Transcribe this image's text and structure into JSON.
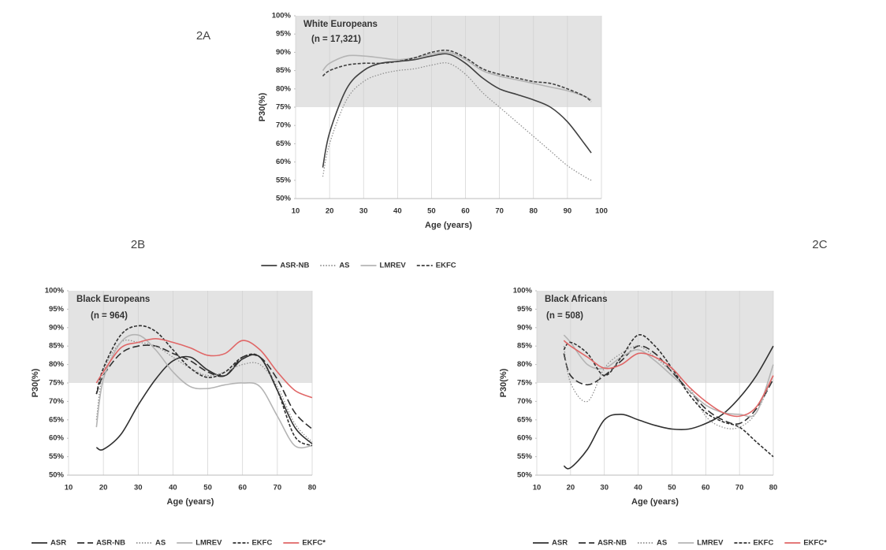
{
  "chart_data": [
    {
      "type": "line",
      "panel_label": "2A",
      "title": "White Europeans",
      "subtitle": "(n = 17,321)",
      "x_label": "Age (years)",
      "y_label": "P30(%)",
      "x": [
        18,
        20,
        25,
        30,
        35,
        40,
        45,
        50,
        55,
        60,
        65,
        70,
        75,
        80,
        85,
        90,
        95,
        97
      ],
      "series": [
        {
          "name": "ASR-NB",
          "color": "#404040",
          "dash": "solid",
          "values": [
            58.5,
            68,
            80,
            85,
            87,
            87.5,
            88,
            89,
            89.5,
            87,
            83,
            80,
            78.5,
            77,
            75,
            71,
            65,
            62.5
          ]
        },
        {
          "name": "AS",
          "color": "#8c8c8c",
          "dash": "dotted",
          "values": [
            56,
            65,
            77,
            82,
            84,
            85,
            85.5,
            86.5,
            87,
            84,
            79,
            75,
            71,
            67,
            63,
            59,
            56,
            55
          ]
        },
        {
          "name": "LMREV",
          "color": "#b4b4b4",
          "dash": "solid",
          "values": [
            85,
            87,
            89,
            89,
            88.5,
            88,
            88.5,
            89.5,
            90,
            88,
            85,
            83.5,
            82.5,
            81.5,
            80.5,
            79.5,
            78,
            77
          ]
        },
        {
          "name": "EKFC",
          "color": "#404040",
          "dash": "dashed",
          "values": [
            83.5,
            85,
            86.5,
            87,
            87,
            87.5,
            88.5,
            90,
            90.5,
            88.5,
            85.5,
            84,
            83,
            82,
            81.5,
            80,
            78,
            76.5
          ]
        }
      ],
      "xlim": [
        10,
        100
      ],
      "xticks": [
        10,
        20,
        30,
        40,
        50,
        60,
        70,
        80,
        90,
        100
      ],
      "ylim": [
        50,
        100
      ],
      "yticks": [
        {
          "value": 50,
          "label": "50%"
        },
        {
          "value": 55,
          "label": "55%"
        },
        {
          "value": 60,
          "label": "60%"
        },
        {
          "value": 65,
          "label": "65%"
        },
        {
          "value": 70,
          "label": "70%"
        },
        {
          "value": 75,
          "label": "75%"
        },
        {
          "value": 80,
          "label": "80%"
        },
        {
          "value": 85,
          "label": "85%"
        },
        {
          "value": 90,
          "label": "90%"
        },
        {
          "value": 95,
          "label": "95%"
        },
        {
          "value": 100,
          "label": "100%"
        }
      ],
      "shaded_band": [
        75,
        100
      ],
      "grid": true,
      "legend": "bottom"
    },
    {
      "type": "line",
      "panel_label": "2B",
      "title": "Black Europeans",
      "subtitle": "(n = 964)",
      "x_label": "Age (years)",
      "y_label": "P30(%)",
      "x": [
        18,
        20,
        25,
        30,
        35,
        40,
        45,
        50,
        55,
        60,
        65,
        70,
        75,
        80
      ],
      "series": [
        {
          "name": "ASR",
          "color": "#303030",
          "dash": "solid",
          "values": [
            57.5,
            57,
            61,
            69,
            76,
            81,
            82,
            78.5,
            77,
            81.5,
            82,
            73,
            63,
            58.5
          ]
        },
        {
          "name": "ASR-NB",
          "color": "#303030",
          "dash": "long-dash",
          "values": [
            72,
            77,
            83,
            85,
            85,
            83,
            81,
            78,
            77,
            82,
            82,
            76,
            67,
            62.5
          ]
        },
        {
          "name": "AS",
          "color": "#8c8c8c",
          "dash": "dotted",
          "values": [
            65,
            78,
            86,
            86,
            85,
            82,
            79,
            77,
            78,
            80,
            80,
            74,
            64,
            59
          ]
        },
        {
          "name": "LMREV",
          "color": "#b4b4b4",
          "dash": "solid",
          "values": [
            63,
            76,
            86,
            88,
            84,
            78,
            74,
            73.5,
            74.5,
            75,
            74,
            66,
            58,
            58
          ]
        },
        {
          "name": "EKFC",
          "color": "#303030",
          "dash": "dashed",
          "values": [
            72,
            79,
            88,
            90.5,
            89,
            84,
            79,
            76.5,
            78,
            82,
            82,
            73,
            60.5,
            58
          ]
        },
        {
          "name": "EKFC*",
          "color": "#e06666",
          "dash": "solid",
          "values": [
            75,
            78,
            84.5,
            86,
            87,
            86,
            84.5,
            82.5,
            83,
            86.5,
            84,
            78,
            73,
            71
          ]
        }
      ],
      "xlim": [
        10,
        80
      ],
      "xticks": [
        10,
        20,
        30,
        40,
        50,
        60,
        70,
        80
      ],
      "ylim": [
        50,
        100
      ],
      "yticks": [
        {
          "value": 50,
          "label": "50%"
        },
        {
          "value": 55,
          "label": "55%"
        },
        {
          "value": 60,
          "label": "60%"
        },
        {
          "value": 65,
          "label": "65%"
        },
        {
          "value": 70,
          "label": "70%"
        },
        {
          "value": 75,
          "label": "75%"
        },
        {
          "value": 80,
          "label": "80%"
        },
        {
          "value": 85,
          "label": "85%"
        },
        {
          "value": 90,
          "label": "90%"
        },
        {
          "value": 95,
          "label": "95%"
        },
        {
          "value": 100,
          "label": "100%"
        }
      ],
      "shaded_band": [
        75,
        100
      ],
      "grid": true,
      "legend": "bottom"
    },
    {
      "type": "line",
      "panel_label": "2C",
      "title": "Black Africans",
      "subtitle": "(n = 508)",
      "x_label": "Age (years)",
      "y_label": "P30(%)",
      "x": [
        18,
        20,
        25,
        30,
        35,
        40,
        45,
        50,
        55,
        60,
        65,
        70,
        75,
        80
      ],
      "series": [
        {
          "name": "ASR",
          "color": "#303030",
          "dash": "solid",
          "values": [
            52.5,
            52,
            57,
            65,
            66.5,
            65,
            63.5,
            62.5,
            62.5,
            64,
            66.5,
            71,
            77,
            85
          ]
        },
        {
          "name": "ASR-NB",
          "color": "#303030",
          "dash": "long-dash",
          "values": [
            83,
            77,
            74.5,
            77,
            81,
            85,
            83,
            78,
            73,
            68,
            65,
            64,
            68,
            76
          ]
        },
        {
          "name": "AS",
          "color": "#8c8c8c",
          "dash": "dotted",
          "values": [
            85,
            75,
            70,
            79,
            83,
            85,
            82,
            78,
            74,
            66,
            63,
            63,
            67,
            77
          ]
        },
        {
          "name": "LMREV",
          "color": "#b4b4b4",
          "dash": "solid",
          "values": [
            88,
            86,
            80,
            79,
            82,
            84,
            81,
            77,
            73,
            69,
            67,
            66.5,
            67,
            80
          ]
        },
        {
          "name": "EKFC",
          "color": "#303030",
          "dash": "dashed",
          "values": [
            84,
            86,
            83,
            77,
            82,
            88,
            85,
            79,
            72,
            67,
            64.5,
            63,
            59,
            55
          ]
        },
        {
          "name": "EKFC*",
          "color": "#e06666",
          "dash": "solid",
          "values": [
            86.5,
            85,
            82,
            79,
            80,
            83,
            82,
            79,
            74,
            70,
            67,
            66,
            68.5,
            77
          ]
        }
      ],
      "xlim": [
        10,
        80
      ],
      "xticks": [
        10,
        20,
        30,
        40,
        50,
        60,
        70,
        80
      ],
      "ylim": [
        50,
        100
      ],
      "yticks": [
        {
          "value": 50,
          "label": "50%"
        },
        {
          "value": 55,
          "label": "55%"
        },
        {
          "value": 60,
          "label": "60%"
        },
        {
          "value": 65,
          "label": "65%"
        },
        {
          "value": 70,
          "label": "70%"
        },
        {
          "value": 75,
          "label": "75%"
        },
        {
          "value": 80,
          "label": "80%"
        },
        {
          "value": 85,
          "label": "85%"
        },
        {
          "value": 90,
          "label": "90%"
        },
        {
          "value": 95,
          "label": "95%"
        },
        {
          "value": 100,
          "label": "100%"
        }
      ],
      "shaded_band": [
        75,
        100
      ],
      "grid": true,
      "legend": "bottom"
    }
  ]
}
